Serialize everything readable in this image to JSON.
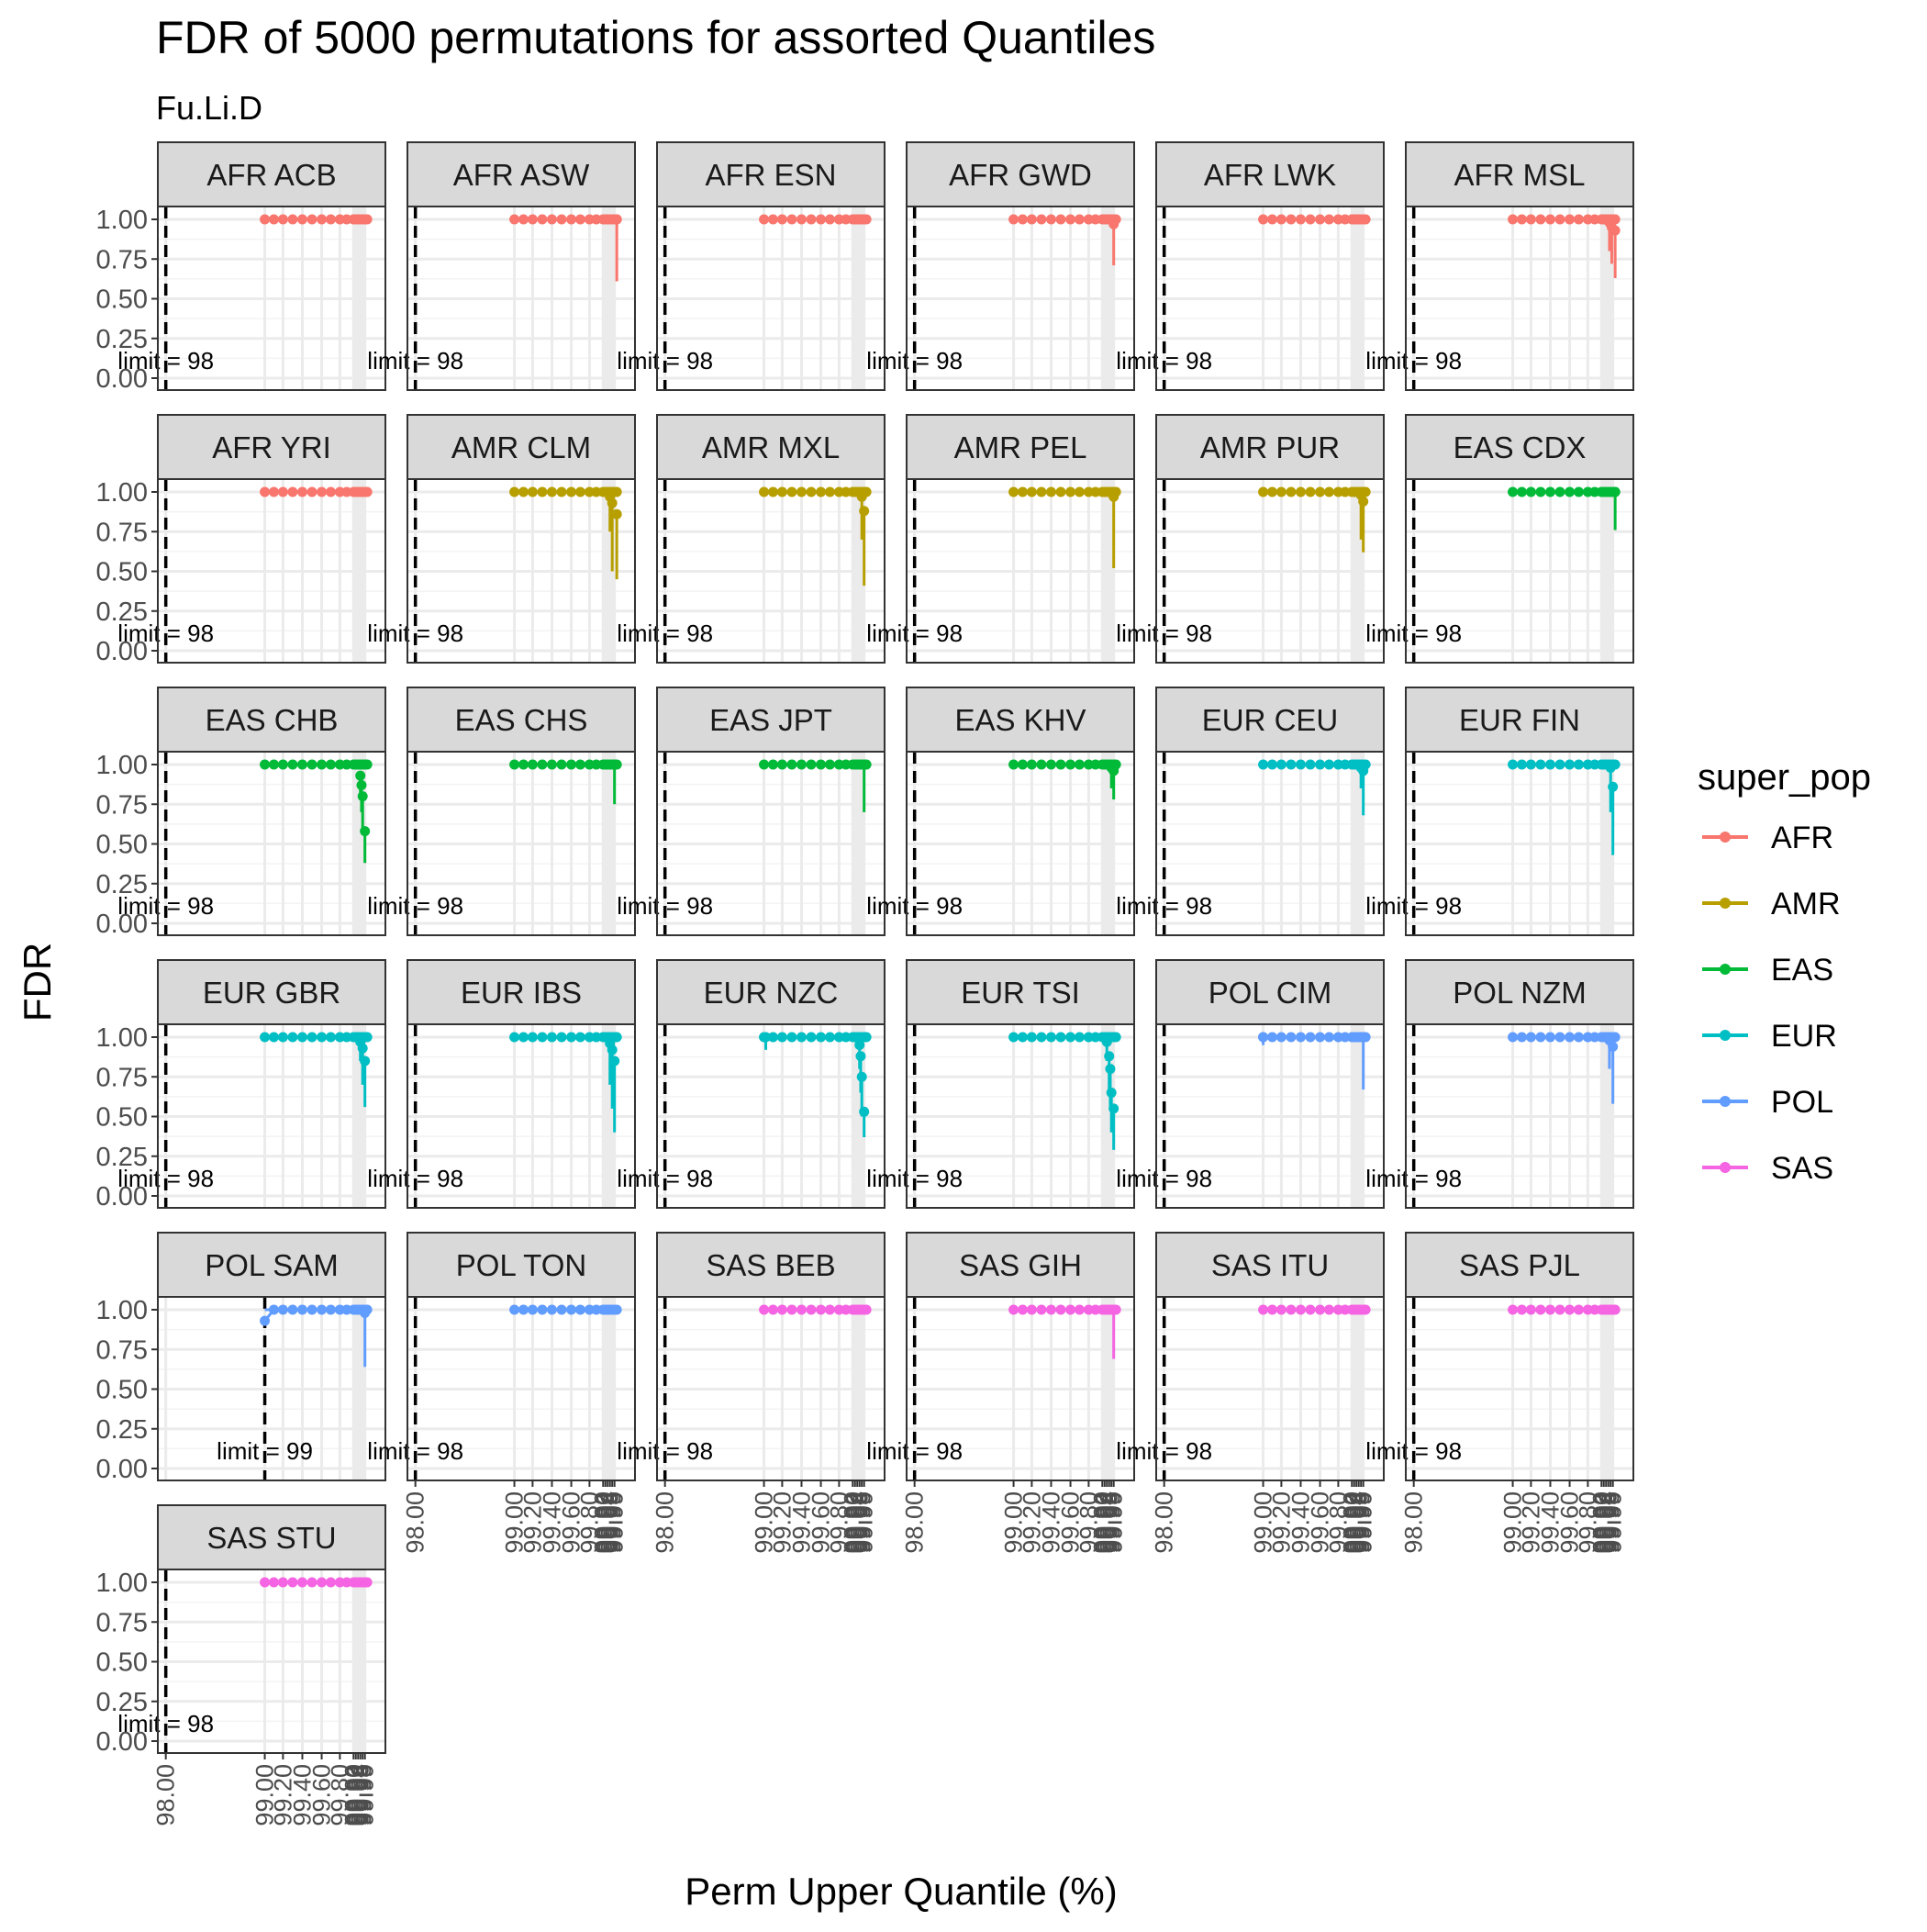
{
  "chart_data": {
    "type": "line",
    "title": "FDR of 5000 permutations for assorted Quantiles",
    "subtitle": "Fu.Li.D",
    "xlabel": "Perm Upper Quantile (%)",
    "ylabel": "FDR",
    "ylim": [
      0,
      1
    ],
    "y_ticks": [
      "0.00",
      "0.25",
      "0.50",
      "0.75",
      "1.00"
    ],
    "x_ticks": [
      "98.00",
      "99.00",
      "99.20",
      "99.40",
      "99.60",
      "99.80",
      "99.90",
      "99.92",
      "99.94",
      "99.96",
      "99.98",
      "99.99"
    ],
    "grid": true,
    "legend_position": "right",
    "legend": {
      "title": "super_pop",
      "items": [
        {
          "name": "AFR",
          "color": "#F8766D"
        },
        {
          "name": "AMR",
          "color": "#B79F00"
        },
        {
          "name": "EAS",
          "color": "#00BA38"
        },
        {
          "name": "EUR",
          "color": "#00BFC4"
        },
        {
          "name": "POL",
          "color": "#619CFF"
        },
        {
          "name": "SAS",
          "color": "#F564E3"
        }
      ]
    },
    "panels": [
      {
        "label": "AFR ACB",
        "super_pop": "AFR",
        "limit_label": "limit = 98",
        "limit": 98,
        "drops": []
      },
      {
        "label": "AFR ASW",
        "super_pop": "AFR",
        "limit_label": "limit = 98",
        "limit": 98,
        "drops": [
          {
            "x": 99.995,
            "y": 1.0,
            "low": 0.61
          }
        ]
      },
      {
        "label": "AFR ESN",
        "super_pop": "AFR",
        "limit_label": "limit = 98",
        "limit": 98,
        "drops": []
      },
      {
        "label": "AFR GWD",
        "super_pop": "AFR",
        "limit_label": "limit = 98",
        "limit": 98,
        "drops": [
          {
            "x": 99.99,
            "y": 0.97,
            "low": 0.71
          }
        ]
      },
      {
        "label": "AFR LWK",
        "super_pop": "AFR",
        "limit_label": "limit = 98",
        "limit": 98,
        "drops": []
      },
      {
        "label": "AFR MSL",
        "super_pop": "AFR",
        "limit_label": "limit = 98",
        "limit": 98,
        "drops": [
          {
            "x": 99.97,
            "y": 0.98,
            "low": 0.8
          },
          {
            "x": 99.985,
            "y": 0.95,
            "low": 0.72
          },
          {
            "x": 99.995,
            "y": 0.93,
            "low": 0.63
          }
        ]
      },
      {
        "label": "AFR YRI",
        "super_pop": "AFR",
        "limit_label": "limit = 98",
        "limit": 98,
        "drops": []
      },
      {
        "label": "AMR CLM",
        "super_pop": "AMR",
        "limit_label": "limit = 98",
        "limit": 98,
        "drops": [
          {
            "x": 99.96,
            "y": 0.97,
            "low": 0.75
          },
          {
            "x": 99.98,
            "y": 0.93,
            "low": 0.5
          },
          {
            "x": 99.995,
            "y": 0.86,
            "low": 0.45
          }
        ]
      },
      {
        "label": "AMR MXL",
        "super_pop": "AMR",
        "limit_label": "limit = 98",
        "limit": 98,
        "drops": [
          {
            "x": 99.98,
            "y": 0.97,
            "low": 0.7
          },
          {
            "x": 99.99,
            "y": 0.88,
            "low": 0.41
          }
        ]
      },
      {
        "label": "AMR PEL",
        "super_pop": "AMR",
        "limit_label": "limit = 98",
        "limit": 98,
        "drops": [
          {
            "x": 99.99,
            "y": 0.97,
            "low": 0.52
          }
        ]
      },
      {
        "label": "AMR PUR",
        "super_pop": "AMR",
        "limit_label": "limit = 98",
        "limit": 98,
        "drops": [
          {
            "x": 99.98,
            "y": 0.98,
            "low": 0.7
          },
          {
            "x": 99.99,
            "y": 0.94,
            "low": 0.62
          }
        ]
      },
      {
        "label": "EAS CDX",
        "super_pop": "EAS",
        "limit_label": "limit = 98",
        "limit": 98,
        "drops": [
          {
            "x": 99.995,
            "y": 1.0,
            "low": 0.76
          }
        ]
      },
      {
        "label": "EAS CHB",
        "super_pop": "EAS",
        "limit_label": "limit = 98",
        "limit": 98,
        "drops": [
          {
            "x": 99.96,
            "y": 0.93,
            "low": 0.8
          },
          {
            "x": 99.97,
            "y": 0.87,
            "low": 0.7
          },
          {
            "x": 99.98,
            "y": 0.8,
            "low": 0.6
          },
          {
            "x": 99.99,
            "y": 0.58,
            "low": 0.38
          }
        ]
      },
      {
        "label": "EAS CHS",
        "super_pop": "EAS",
        "limit_label": "limit = 98",
        "limit": 98,
        "drops": [
          {
            "x": 99.99,
            "y": 1.0,
            "low": 0.75
          }
        ]
      },
      {
        "label": "EAS JPT",
        "super_pop": "EAS",
        "limit_label": "limit = 98",
        "limit": 98,
        "drops": [
          {
            "x": 99.99,
            "y": 1.0,
            "low": 0.7
          }
        ]
      },
      {
        "label": "EAS KHV",
        "super_pop": "EAS",
        "limit_label": "limit = 98",
        "limit": 98,
        "drops": [
          {
            "x": 99.98,
            "y": 0.98,
            "low": 0.85
          },
          {
            "x": 99.99,
            "y": 0.96,
            "low": 0.78
          }
        ]
      },
      {
        "label": "EUR CEU",
        "super_pop": "EUR",
        "limit_label": "limit = 98",
        "limit": 98,
        "drops": [
          {
            "x": 99.98,
            "y": 0.98,
            "low": 0.85
          },
          {
            "x": 99.99,
            "y": 0.96,
            "low": 0.68
          }
        ]
      },
      {
        "label": "EUR FIN",
        "super_pop": "EUR",
        "limit_label": "limit = 98",
        "limit": 98,
        "drops": [
          {
            "x": 99.98,
            "y": 0.98,
            "low": 0.7
          },
          {
            "x": 99.99,
            "y": 0.86,
            "low": 0.43
          }
        ]
      },
      {
        "label": "EUR GBR",
        "super_pop": "EUR",
        "limit_label": "limit = 98",
        "limit": 98,
        "drops": [
          {
            "x": 99.96,
            "y": 0.97,
            "low": 0.85
          },
          {
            "x": 99.98,
            "y": 0.93,
            "low": 0.7
          },
          {
            "x": 99.99,
            "y": 0.85,
            "low": 0.56
          }
        ]
      },
      {
        "label": "EUR IBS",
        "super_pop": "EUR",
        "limit_label": "limit = 98",
        "limit": 98,
        "drops": [
          {
            "x": 99.96,
            "y": 0.96,
            "low": 0.7
          },
          {
            "x": 99.98,
            "y": 0.92,
            "low": 0.55
          },
          {
            "x": 99.99,
            "y": 0.85,
            "low": 0.4
          }
        ]
      },
      {
        "label": "EUR NZC",
        "super_pop": "EUR",
        "limit_label": "limit = 98",
        "limit": 98,
        "drops": [
          {
            "x": 99.02,
            "y": 1.0,
            "low": 0.92
          },
          {
            "x": 99.96,
            "y": 0.95,
            "low": 0.8
          },
          {
            "x": 99.97,
            "y": 0.88,
            "low": 0.65
          },
          {
            "x": 99.98,
            "y": 0.75,
            "low": 0.5
          },
          {
            "x": 99.99,
            "y": 0.53,
            "low": 0.37
          }
        ]
      },
      {
        "label": "EUR TSI",
        "super_pop": "EUR",
        "limit_label": "limit = 98",
        "limit": 98,
        "drops": [
          {
            "x": 99.94,
            "y": 0.97,
            "low": 0.85
          },
          {
            "x": 99.96,
            "y": 0.88,
            "low": 0.65
          },
          {
            "x": 99.97,
            "y": 0.8,
            "low": 0.55
          },
          {
            "x": 99.98,
            "y": 0.65,
            "low": 0.4
          },
          {
            "x": 99.99,
            "y": 0.55,
            "low": 0.29
          }
        ]
      },
      {
        "label": "POL CIM",
        "super_pop": "POL",
        "limit_label": "limit = 98",
        "limit": 98,
        "drops": [
          {
            "x": 99.0,
            "y": 1.0,
            "low": 0.95
          },
          {
            "x": 99.99,
            "y": 1.0,
            "low": 0.67
          }
        ]
      },
      {
        "label": "POL NZM",
        "super_pop": "POL",
        "limit_label": "limit = 98",
        "limit": 98,
        "drops": [
          {
            "x": 99.97,
            "y": 0.98,
            "low": 0.8
          },
          {
            "x": 99.99,
            "y": 0.94,
            "low": 0.58
          }
        ]
      },
      {
        "label": "POL SAM",
        "super_pop": "POL",
        "limit_label": "limit = 99",
        "limit": 99,
        "start_y": 0.93,
        "drops": [
          {
            "x": 99.99,
            "y": 0.98,
            "low": 0.64
          }
        ]
      },
      {
        "label": "POL TON",
        "super_pop": "POL",
        "limit_label": "limit = 98",
        "limit": 98,
        "drops": []
      },
      {
        "label": "SAS BEB",
        "super_pop": "SAS",
        "limit_label": "limit = 98",
        "limit": 98,
        "drops": []
      },
      {
        "label": "SAS GIH",
        "super_pop": "SAS",
        "limit_label": "limit = 98",
        "limit": 98,
        "drops": [
          {
            "x": 99.99,
            "y": 1.0,
            "low": 0.69
          }
        ]
      },
      {
        "label": "SAS ITU",
        "super_pop": "SAS",
        "limit_label": "limit = 98",
        "limit": 98,
        "drops": []
      },
      {
        "label": "SAS PJL",
        "super_pop": "SAS",
        "limit_label": "limit = 98",
        "limit": 98,
        "drops": []
      },
      {
        "label": "SAS STU",
        "super_pop": "SAS",
        "limit_label": "limit = 98",
        "limit": 98,
        "drops": []
      }
    ]
  }
}
